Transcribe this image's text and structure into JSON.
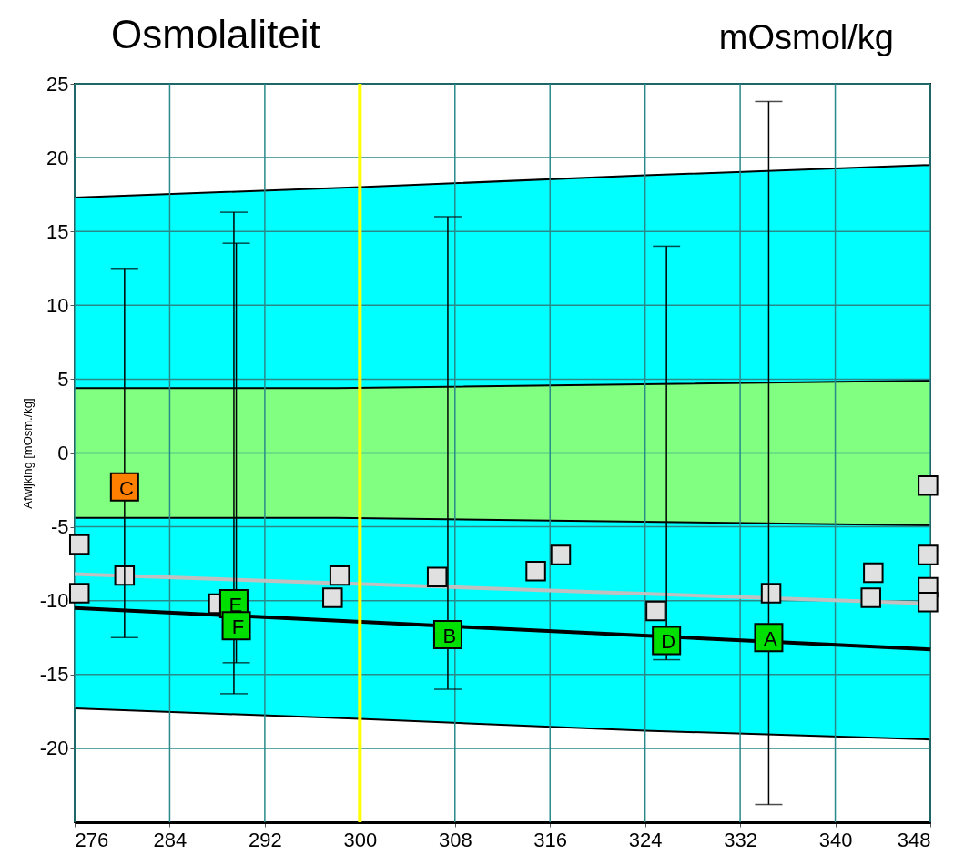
{
  "chart_data": {
    "type": "scatter",
    "title": "Osmolaliteit",
    "subtitle": "mOsmol/kg",
    "ylabel": "Afwijking  [mOsm./kg]",
    "xlim": [
      276,
      348
    ],
    "xticks": [
      276,
      284,
      292,
      300,
      308,
      316,
      324,
      332,
      340,
      348
    ],
    "ylim": [
      -25,
      25
    ],
    "yticks": [
      -20,
      -15,
      -10,
      -5,
      0,
      5,
      10,
      15,
      20,
      25
    ],
    "grid": true,
    "ref_lines": [
      {
        "axis": "x",
        "value": 300,
        "color": "#ffff00"
      }
    ],
    "series": [
      {
        "type": "area",
        "x": [
          276,
          300,
          324,
          348
        ],
        "values": [
          17.3,
          18.0,
          18.8,
          19.5
        ],
        "color": "#00ffff"
      },
      {
        "type": "area",
        "x": [
          276,
          300,
          324,
          348
        ],
        "values": [
          -17.3,
          -18.0,
          -18.8,
          -19.4
        ],
        "color": "#00ffff"
      },
      {
        "type": "area",
        "x": [
          276,
          298,
          348
        ],
        "values": [
          4.4,
          4.4,
          4.9
        ],
        "color": "#80ff80"
      },
      {
        "type": "area",
        "x": [
          276,
          298,
          348
        ],
        "values": [
          -4.4,
          -4.4,
          -4.9
        ],
        "color": "#80ff80"
      },
      {
        "type": "line",
        "x": [
          276,
          348
        ],
        "values": [
          -8.2,
          -10.2
        ],
        "color": "#c0c0c0"
      },
      {
        "type": "line",
        "x": [
          276,
          348
        ],
        "values": [
          -10.5,
          -13.3
        ],
        "color": "#000000"
      },
      {
        "marker": "square",
        "x": [
          276.4,
          276.4,
          280.2,
          288.1,
          297.7,
          298.3,
          306.5,
          314.8,
          316.9,
          324.9,
          334.6,
          343.2,
          343.0,
          347.8,
          347.8,
          347.8,
          347.8
        ],
        "values": [
          -6.2,
          -9.5,
          -8.3,
          -10.2,
          -9.8,
          -8.3,
          -8.4,
          -8.0,
          -6.9,
          -10.7,
          -9.5,
          -8.1,
          -9.8,
          -2.2,
          -6.9,
          -9.1,
          -10.1
        ],
        "color": "#e0e0e0"
      },
      {
        "marker": "square",
        "x": [
          334.4,
          307.4,
          280.2,
          325.8,
          289.4,
          289.6
        ],
        "values": [
          -12.5,
          -12.3,
          -2.3,
          -12.7,
          -10.2,
          -11.7
        ],
        "errors": [
          [
            -23.8,
            23.8
          ],
          [
            -16.0,
            16.0
          ],
          [
            -12.5,
            12.5
          ],
          [
            -14.0,
            14.0
          ],
          [
            -16.3,
            16.3
          ],
          [
            -14.2,
            14.2
          ]
        ],
        "colors": [
          "#00e000",
          "#00e000",
          "#ff8000",
          "#00e000",
          "#00e000",
          "#00e000"
        ],
        "value_labels": [
          "A",
          "B",
          "C",
          "D",
          "E",
          "F"
        ]
      }
    ]
  }
}
